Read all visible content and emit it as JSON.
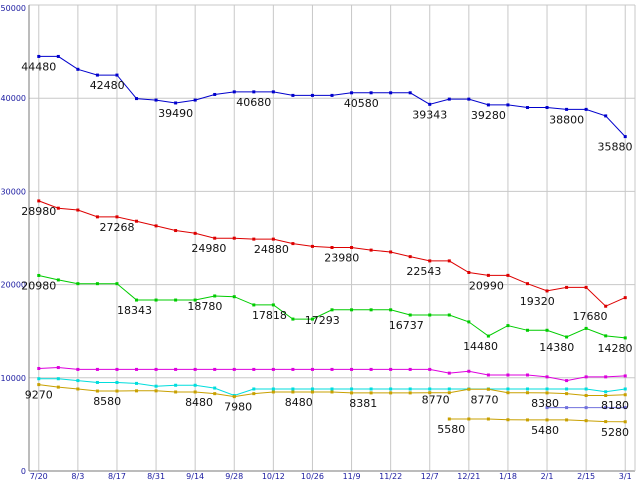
{
  "chart_data": {
    "type": "line",
    "title": "",
    "xlabel": "",
    "ylabel": "",
    "ylim": [
      0,
      50000
    ],
    "y_ticks": [
      0,
      10000,
      20000,
      30000,
      40000,
      50000
    ],
    "grid": true,
    "legend": "none",
    "x_tick_labels": [
      "7/20",
      "8/3",
      "8/17",
      "8/31",
      "9/14",
      "9/28",
      "10/12",
      "10/26",
      "11/9",
      "11/22",
      "12/7",
      "12/21",
      "1/18",
      "2/1",
      "2/15",
      "3/1"
    ],
    "x_tick_positions": [
      0,
      2,
      4,
      6,
      8,
      10,
      12,
      14,
      16,
      18,
      20,
      22,
      24,
      26,
      28,
      30
    ],
    "x_range": [
      -0.5,
      30.5
    ],
    "series": [
      {
        "color": "#0000cc",
        "x": [
          0,
          1,
          2,
          3,
          4,
          5,
          6,
          7,
          8,
          9,
          10,
          11,
          12,
          13,
          14,
          15,
          16,
          17,
          18,
          19,
          20,
          21,
          22,
          23,
          24,
          25,
          26,
          27,
          28,
          29,
          30
        ],
        "values": [
          44480,
          44480,
          43100,
          42480,
          42480,
          39960,
          39800,
          39490,
          39800,
          40400,
          40680,
          40680,
          40680,
          40300,
          40300,
          40300,
          40580,
          40580,
          40580,
          40580,
          39343,
          39900,
          39900,
          39280,
          39280,
          39000,
          39000,
          38800,
          38800,
          38100,
          35880
        ]
      },
      {
        "color": "#dd0000",
        "x": [
          0,
          1,
          2,
          3,
          4,
          5,
          6,
          7,
          8,
          9,
          10,
          11,
          12,
          13,
          14,
          15,
          16,
          17,
          18,
          19,
          20,
          21,
          22,
          23,
          24,
          25,
          26,
          27,
          28,
          29,
          30
        ],
        "values": [
          28980,
          28200,
          28000,
          27268,
          27268,
          26800,
          26300,
          25800,
          25500,
          24980,
          24980,
          24880,
          24880,
          24400,
          24100,
          23980,
          23980,
          23700,
          23500,
          23000,
          22543,
          22543,
          21300,
          20990,
          20990,
          20100,
          19320,
          19700,
          19700,
          17680,
          18600
        ]
      },
      {
        "color": "#00cc00",
        "x": [
          0,
          1,
          2,
          3,
          4,
          5,
          6,
          7,
          8,
          9,
          10,
          11,
          12,
          13,
          14,
          15,
          16,
          17,
          18,
          19,
          20,
          21,
          22,
          23,
          24,
          25,
          26,
          27,
          28,
          29,
          30
        ],
        "values": [
          20980,
          20500,
          20100,
          20100,
          20100,
          18343,
          18343,
          18343,
          18343,
          18780,
          18700,
          17818,
          17818,
          16300,
          16300,
          17293,
          17293,
          17293,
          17293,
          16737,
          16737,
          16737,
          16000,
          14480,
          15600,
          15100,
          15100,
          14380,
          15300,
          14500,
          14280
        ]
      },
      {
        "color": "#dd00dd",
        "x": [
          0,
          1,
          2,
          3,
          4,
          5,
          6,
          7,
          8,
          9,
          10,
          11,
          12,
          13,
          14,
          15,
          16,
          17,
          18,
          19,
          20,
          21,
          22,
          23,
          24,
          25,
          26,
          27,
          28,
          29,
          30
        ],
        "values": [
          11000,
          11100,
          10900,
          10900,
          10900,
          10900,
          10900,
          10900,
          10900,
          10900,
          10900,
          10900,
          10900,
          10900,
          10900,
          10900,
          10900,
          10900,
          10900,
          10900,
          10900,
          10500,
          10700,
          10300,
          10300,
          10300,
          10100,
          9700,
          10100,
          10100,
          10200
        ]
      },
      {
        "color": "#00dddd",
        "x": [
          0,
          1,
          2,
          3,
          4,
          5,
          6,
          7,
          8,
          9,
          10,
          11,
          12,
          13,
          14,
          15,
          16,
          17,
          18,
          19,
          20,
          21,
          22,
          23,
          24,
          25,
          26,
          27,
          28,
          29,
          30
        ],
        "values": [
          9900,
          9900,
          9700,
          9500,
          9500,
          9400,
          9100,
          9200,
          9200,
          8900,
          8100,
          8800,
          8800,
          8800,
          8800,
          8800,
          8800,
          8800,
          8800,
          8800,
          8800,
          8800,
          8800,
          8800,
          8800,
          8800,
          8800,
          8800,
          8800,
          8500,
          8800
        ]
      },
      {
        "color": "#c8a000",
        "x": [
          0,
          1,
          2,
          3,
          4,
          5,
          6,
          7,
          8,
          9,
          10,
          11,
          12,
          13,
          14,
          15,
          16,
          17,
          18,
          19,
          20,
          21,
          22,
          23,
          24,
          25,
          26,
          27,
          28,
          29,
          30
        ],
        "values": [
          9270,
          9000,
          8800,
          8580,
          8580,
          8600,
          8600,
          8480,
          8480,
          8300,
          7980,
          8300,
          8480,
          8480,
          8481,
          8481,
          8381,
          8381,
          8381,
          8381,
          8400,
          8400,
          8770,
          8770,
          8400,
          8400,
          8380,
          8300,
          8100,
          8100,
          8180
        ]
      },
      {
        "color": "#c8a000",
        "x": [
          21,
          22,
          23,
          24,
          25,
          26,
          27,
          28,
          29,
          30
        ],
        "values": [
          5580,
          5580,
          5580,
          5500,
          5480,
          5480,
          5480,
          5400,
          5300,
          5280
        ]
      },
      {
        "color": "#7070dd",
        "x": [
          26,
          27,
          28,
          29,
          30
        ],
        "values": [
          6800,
          6800,
          6800,
          6800,
          6800
        ]
      }
    ],
    "data_labels": [
      {
        "text": "44480",
        "x": 0,
        "y": 44480,
        "color": "#111111"
      },
      {
        "text": "42480",
        "x": 3.5,
        "y": 42480,
        "color": "#111111"
      },
      {
        "text": "39490",
        "x": 7,
        "y": 39490,
        "color": "#111111"
      },
      {
        "text": "40680",
        "x": 11,
        "y": 40680,
        "color": "#111111"
      },
      {
        "text": "40580",
        "x": 16.5,
        "y": 40580,
        "color": "#111111"
      },
      {
        "text": "39343",
        "x": 20,
        "y": 39343,
        "color": "#111111"
      },
      {
        "text": "39280",
        "x": 23,
        "y": 39280,
        "color": "#111111"
      },
      {
        "text": "38800",
        "x": 27,
        "y": 38800,
        "color": "#111111"
      },
      {
        "text": "35880",
        "x": 29.8,
        "y": 35880,
        "color": "#111111"
      },
      {
        "text": "28980",
        "x": 0,
        "y": 28980,
        "color": "#111111"
      },
      {
        "text": "27268",
        "x": 4,
        "y": 27268,
        "color": "#111111"
      },
      {
        "text": "24980",
        "x": 8.7,
        "y": 24980,
        "color": "#111111"
      },
      {
        "text": "24880",
        "x": 11.9,
        "y": 24880,
        "color": "#111111"
      },
      {
        "text": "23980",
        "x": 15.5,
        "y": 23980,
        "color": "#111111"
      },
      {
        "text": "22543",
        "x": 19.7,
        "y": 22543,
        "color": "#111111"
      },
      {
        "text": "20990",
        "x": 22.9,
        "y": 20990,
        "color": "#111111"
      },
      {
        "text": "19320",
        "x": 25.5,
        "y": 19320,
        "color": "#111111"
      },
      {
        "text": "17680",
        "x": 28.2,
        "y": 17680,
        "color": "#111111"
      },
      {
        "text": "20980",
        "x": 0,
        "y": 20980,
        "color": "#111111"
      },
      {
        "text": "18343",
        "x": 4.9,
        "y": 18343,
        "color": "#111111"
      },
      {
        "text": "18780",
        "x": 8.5,
        "y": 18780,
        "color": "#111111"
      },
      {
        "text": "17818",
        "x": 11.8,
        "y": 17818,
        "color": "#111111"
      },
      {
        "text": "17293",
        "x": 14.5,
        "y": 17293,
        "color": "#111111"
      },
      {
        "text": "16737",
        "x": 18.8,
        "y": 16737,
        "color": "#111111"
      },
      {
        "text": "14480",
        "x": 22.6,
        "y": 14480,
        "color": "#111111"
      },
      {
        "text": "14380",
        "x": 26.5,
        "y": 14380,
        "color": "#111111"
      },
      {
        "text": "14280",
        "x": 29.6,
        "y": 14280,
        "color": "#111111"
      },
      {
        "text": "9270",
        "x": 0,
        "y": 9270,
        "color": "#111111"
      },
      {
        "text": "8580",
        "x": 3.5,
        "y": 8580,
        "color": "#111111"
      },
      {
        "text": "8480",
        "x": 8.2,
        "y": 8480,
        "color": "#111111"
      },
      {
        "text": "7980",
        "x": 10.2,
        "y": 7980,
        "color": "#111111"
      },
      {
        "text": "8480",
        "x": 13.3,
        "y": 8480,
        "color": "#111111"
      },
      {
        "text": "8381",
        "x": 16.6,
        "y": 8381,
        "color": "#111111"
      },
      {
        "text": "8770",
        "x": 20.3,
        "y": 8770,
        "color": "#111111"
      },
      {
        "text": "8770",
        "x": 22.8,
        "y": 8770,
        "color": "#111111"
      },
      {
        "text": "8380",
        "x": 25.9,
        "y": 8380,
        "color": "#111111"
      },
      {
        "text": "8180",
        "x": 29.8,
        "y": 8180,
        "color": "#111111"
      },
      {
        "text": "5580",
        "x": 21.1,
        "y": 5580,
        "color": "#111111"
      },
      {
        "text": "5480",
        "x": 25.9,
        "y": 5480,
        "color": "#111111"
      },
      {
        "text": "5280",
        "x": 29.8,
        "y": 5280,
        "color": "#111111"
      }
    ],
    "colors": {
      "background": "#ffffff",
      "grid": "#c8c8c8",
      "axis": "#7a7a7a",
      "tick_text": "#1a1aa0"
    }
  }
}
